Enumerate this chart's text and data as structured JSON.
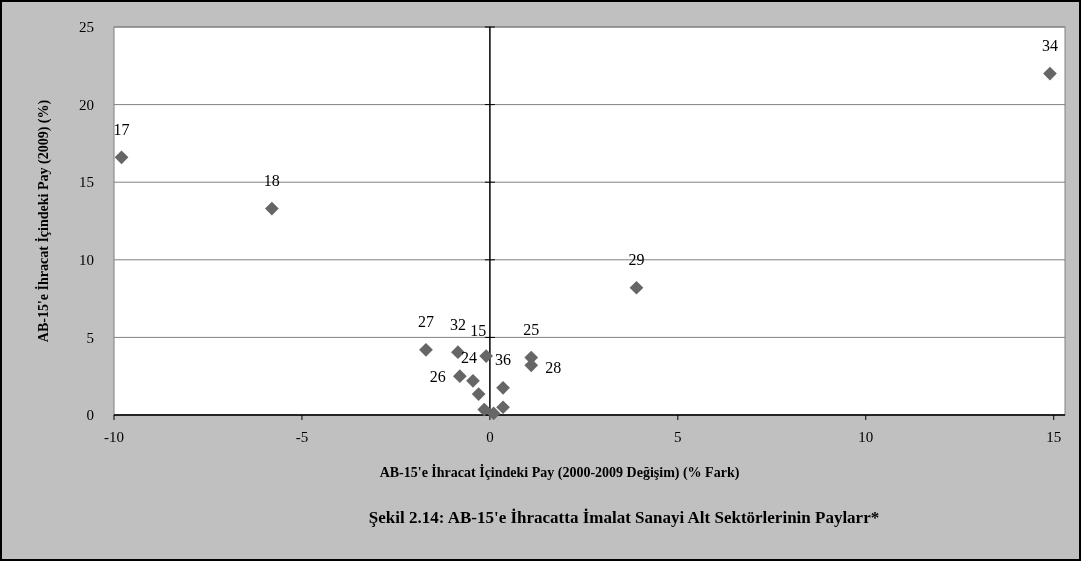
{
  "chart_data": {
    "type": "scatter",
    "title": "Şekil 2.14: AB-15'e İhracatta İmalat Sanayi Alt Sektörlerinin  Paylarr*",
    "xlabel": "AB-15'e İhracat İçindeki Pay (2000-2009 Değişim) (% Fark)",
    "ylabel": "AB-15'e İhracat İçindeki Pay (2009) (%)",
    "x": [
      -9.8,
      -5.8,
      14.9,
      3.9,
      -1.7,
      -0.85,
      -0.1,
      1.1,
      1.1,
      -0.8,
      -0.45,
      -0.3,
      0.35,
      0.1,
      0.35,
      -0.15
    ],
    "series": [
      {
        "color": "#666666",
        "values": [
          16.6,
          13.3,
          22.0,
          8.2,
          4.2,
          4.05,
          3.8,
          3.7,
          3.2,
          2.5,
          2.2,
          1.35,
          1.75,
          0.1,
          0.5,
          0.35
        ]
      }
    ],
    "marker": "diamond",
    "xlim": [
      -10,
      15.3
    ],
    "ylim": [
      0,
      25
    ],
    "xticks": [
      -10,
      -5,
      0,
      5,
      10,
      15
    ],
    "yticks": [
      0,
      5,
      10,
      15,
      20,
      25
    ],
    "grid": "y",
    "annotations": [
      {
        "text": "17",
        "x": -9.8,
        "y": 16.6
      },
      {
        "text": "18",
        "x": -5.8,
        "y": 13.3
      },
      {
        "text": "34",
        "x": 14.9,
        "y": 22.0
      },
      {
        "text": "29",
        "x": 3.9,
        "y": 8.2
      },
      {
        "text": "27",
        "x": -1.7,
        "y": 4.2
      },
      {
        "text": "32",
        "x": -0.85,
        "y": 4.05
      },
      {
        "text": "15",
        "x": -0.1,
        "y": 3.8
      },
      {
        "text": "25",
        "x": 1.1,
        "y": 3.7
      },
      {
        "text": "28",
        "x": 1.1,
        "y": 3.2
      },
      {
        "text": "26",
        "x": -0.8,
        "y": 2.5
      },
      {
        "text": "24",
        "x": -0.45,
        "y": 2.2
      },
      {
        "text": "36",
        "x": 0.35,
        "y": 1.75
      }
    ]
  }
}
